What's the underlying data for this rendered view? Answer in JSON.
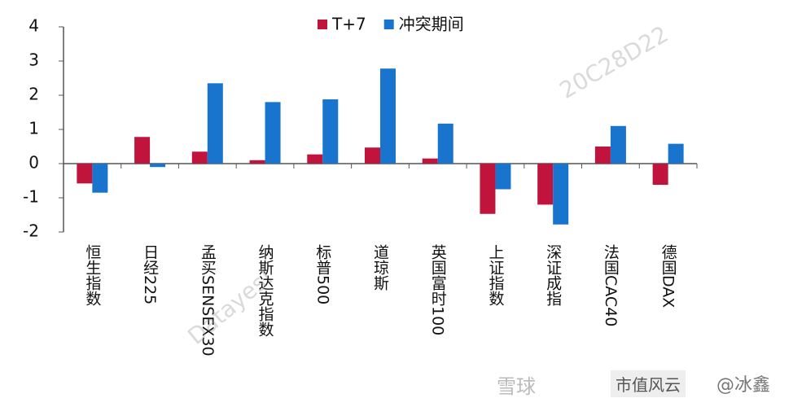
{
  "chart_data": {
    "type": "bar",
    "categories": [
      "恒生指数",
      "日经225",
      "孟买SENSEX30",
      "纳斯达克指数",
      "标普500",
      "道琼斯",
      "英国富时100",
      "上证指数",
      "深证成指",
      "法国CAC40",
      "德国DAX"
    ],
    "series": [
      {
        "name": "T+7",
        "color": "#c0143c",
        "values": [
          -0.58,
          0.78,
          0.35,
          0.1,
          0.27,
          0.47,
          0.15,
          -1.47,
          -1.2,
          0.5,
          -0.62
        ]
      },
      {
        "name": "冲突期间",
        "color": "#1874cd",
        "values": [
          -0.85,
          -0.1,
          2.35,
          1.8,
          1.88,
          2.78,
          1.17,
          -0.75,
          -1.78,
          1.1,
          0.58
        ]
      }
    ],
    "ylim": [
      -2,
      4
    ],
    "yticks": [
      -2,
      -1,
      0,
      1,
      2,
      3,
      4
    ],
    "legend": "top"
  },
  "watermarks": [
    "20C28D22",
    "Datayes!",
    "雪球",
    "市值风云",
    "@冰鑫"
  ]
}
